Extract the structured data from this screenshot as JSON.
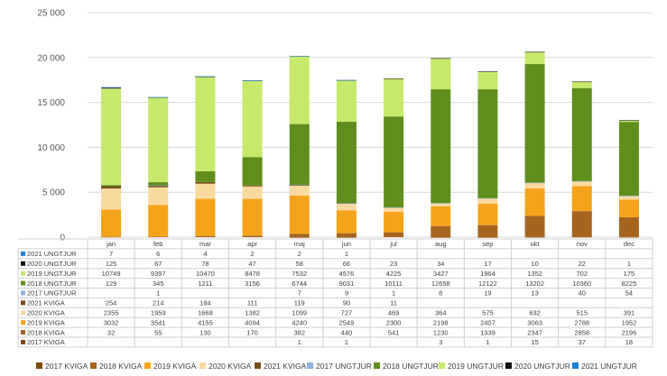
{
  "chart_data": {
    "type": "bar",
    "stacked": true,
    "title": "",
    "xlabel": "",
    "ylabel": "",
    "ylim": [
      0,
      25000
    ],
    "yticks": [
      "0",
      "5 000",
      "10 000",
      "15 000",
      "20 000",
      "25 000"
    ],
    "grid": true,
    "legend_position": "bottom",
    "categories": [
      "jan",
      "feb",
      "mar",
      "apr",
      "maj",
      "jun",
      "jul",
      "aug",
      "sep",
      "okt",
      "nov",
      "dec"
    ],
    "series": [
      {
        "name": "2017 KVIGA",
        "color": "#7f4a12",
        "values": [
          null,
          null,
          null,
          null,
          1,
          1,
          null,
          3,
          1,
          15,
          37,
          18
        ],
        "labels": [
          "",
          "",
          "",
          "",
          "1",
          "1",
          "",
          "3",
          "1",
          "15",
          "37",
          "18"
        ]
      },
      {
        "name": "2018 KVIGA",
        "color": "#a5651f",
        "values": [
          32,
          55,
          130,
          170,
          382,
          440,
          541,
          1230,
          1339,
          2347,
          2858,
          2196
        ],
        "labels": [
          "32",
          "55",
          "130",
          "170",
          "382",
          "440",
          "541",
          "1230",
          "1339",
          "2347",
          "2858",
          "2196"
        ]
      },
      {
        "name": "2019 KVIGA",
        "color": "#f5a31a",
        "values": [
          3032,
          3541,
          4155,
          4094,
          4240,
          2549,
          2300,
          2198,
          2407,
          3063,
          2788,
          1952
        ],
        "labels": [
          "3032",
          "3541",
          "4155",
          "4094",
          "4240",
          "2549",
          "2300",
          "2198",
          "2407",
          "3063",
          "2788",
          "1952"
        ]
      },
      {
        "name": "2020 KVIGA",
        "color": "#fad9a0",
        "values": [
          2355,
          1959,
          1668,
          1382,
          1099,
          727,
          469,
          364,
          575,
          632,
          515,
          391
        ],
        "labels": [
          "2355",
          "1959",
          "1668",
          "1382",
          "1099",
          "727",
          "469",
          "364",
          "575",
          "632",
          "515",
          "391"
        ]
      },
      {
        "name": "2021 KVIGA",
        "color": "#7a4e1a",
        "values": [
          254,
          214,
          184,
          111,
          119,
          90,
          11,
          null,
          null,
          null,
          null,
          null
        ],
        "labels": [
          "254",
          "214",
          "184",
          "111",
          "119",
          "90",
          "11",
          "",
          "",
          "",
          "",
          ""
        ]
      },
      {
        "name": "2017 UNGTJUR",
        "color": "#8fb4e0",
        "values": [
          null,
          1,
          null,
          null,
          7,
          9,
          1,
          8,
          19,
          13,
          40,
          54
        ],
        "labels": [
          "",
          "1",
          "",
          "",
          "7",
          "9",
          "1",
          "8",
          "19",
          "13",
          "40",
          "54"
        ]
      },
      {
        "name": "2018 UNGTJUR",
        "color": "#5f8e1c",
        "values": [
          129,
          345,
          1211,
          3156,
          6744,
          9031,
          10111,
          12658,
          12122,
          13202,
          10360,
          8225
        ],
        "labels": [
          "129",
          "345",
          "1211",
          "3156",
          "6744",
          "9031",
          "10111",
          "12658",
          "12122",
          "13202",
          "10360",
          "8225"
        ]
      },
      {
        "name": "2019 UNGTJUR",
        "color": "#c6e96a",
        "values": [
          10749,
          9397,
          10470,
          8478,
          7532,
          4576,
          4225,
          3427,
          1964,
          1352,
          702,
          175
        ],
        "labels": [
          "10749",
          "9397",
          "10470",
          "8478",
          "7532",
          "4576",
          "4225",
          "3427",
          "1964",
          "1352",
          "702",
          "175"
        ]
      },
      {
        "name": "2020 UNGTJUR",
        "color": "#111111",
        "values": [
          125,
          67,
          78,
          47,
          58,
          66,
          23,
          34,
          17,
          10,
          22,
          1
        ],
        "labels": [
          "125",
          "67",
          "78",
          "47",
          "58",
          "66",
          "23",
          "34",
          "17",
          "10",
          "22",
          "1"
        ]
      },
      {
        "name": "2021 UNGTJUR",
        "color": "#1f7fd4",
        "values": [
          7,
          6,
          4,
          2,
          2,
          1,
          null,
          null,
          null,
          null,
          null,
          null
        ],
        "labels": [
          "7",
          "6",
          "4",
          "2",
          "2",
          "1",
          "",
          "",
          "",
          "",
          "",
          ""
        ]
      }
    ]
  }
}
